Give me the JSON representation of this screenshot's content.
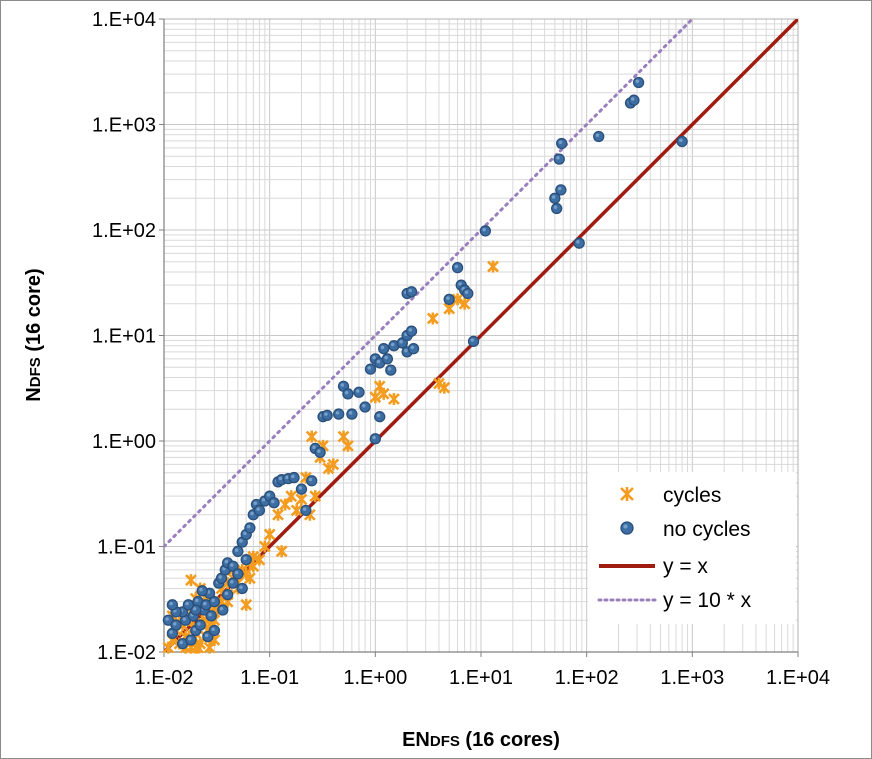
{
  "chart_data": {
    "type": "scatter",
    "x_scale": "log",
    "y_scale": "log",
    "xlim": [
      0.01,
      10000
    ],
    "ylim": [
      0.01,
      10000
    ],
    "x_tick_labels": [
      "1.E-02",
      "1.E-01",
      "1.E+00",
      "1.E+01",
      "1.E+02",
      "1.E+03",
      "1.E+04"
    ],
    "y_tick_labels": [
      "1.E-02",
      "1.E-01",
      "1.E+00",
      "1.E+01",
      "1.E+02",
      "1.E+03",
      "1.E+04"
    ],
    "xlabel": {
      "main": "EN",
      "small": "DFS",
      "rest": " (16 cores)"
    },
    "ylabel": {
      "main": "N",
      "small": "DFS",
      "rest": " (16 core)"
    },
    "grid": true,
    "legend_position": "bottom-right",
    "colors": {
      "cycles": "#f39c1f",
      "no_cycles": "#3d6ea3",
      "yx": "#a01b10",
      "y10x": "#9a7fbf",
      "grid": "#d9d9d9"
    },
    "series": [
      {
        "name": "cycles",
        "marker": "asterisk",
        "points": [
          [
            0.011,
            0.011
          ],
          [
            0.012,
            0.013
          ],
          [
            0.013,
            0.016
          ],
          [
            0.014,
            0.012
          ],
          [
            0.015,
            0.018
          ],
          [
            0.016,
            0.014
          ],
          [
            0.017,
            0.02
          ],
          [
            0.018,
            0.011
          ],
          [
            0.019,
            0.017
          ],
          [
            0.02,
            0.015
          ],
          [
            0.021,
            0.025
          ],
          [
            0.022,
            0.012
          ],
          [
            0.023,
            0.019
          ],
          [
            0.024,
            0.03
          ],
          [
            0.025,
            0.014
          ],
          [
            0.026,
            0.022
          ],
          [
            0.027,
            0.011
          ],
          [
            0.028,
            0.018
          ],
          [
            0.03,
            0.013
          ],
          [
            0.012,
            0.022
          ],
          [
            0.014,
            0.019
          ],
          [
            0.016,
            0.011
          ],
          [
            0.018,
            0.024
          ],
          [
            0.02,
            0.011
          ],
          [
            0.022,
            0.04
          ],
          [
            0.025,
            0.02
          ],
          [
            0.028,
            0.03
          ],
          [
            0.032,
            0.025
          ],
          [
            0.035,
            0.04
          ],
          [
            0.04,
            0.035
          ],
          [
            0.045,
            0.05
          ],
          [
            0.05,
            0.045
          ],
          [
            0.055,
            0.06
          ],
          [
            0.06,
            0.055
          ],
          [
            0.065,
            0.07
          ],
          [
            0.07,
            0.065
          ],
          [
            0.04,
            0.03
          ],
          [
            0.045,
            0.06
          ],
          [
            0.05,
            0.04
          ],
          [
            0.06,
            0.028
          ],
          [
            0.065,
            0.05
          ],
          [
            0.07,
            0.08
          ],
          [
            0.08,
            0.075
          ],
          [
            0.09,
            0.1
          ],
          [
            0.1,
            0.13
          ],
          [
            0.12,
            0.2
          ],
          [
            0.13,
            0.09
          ],
          [
            0.14,
            0.25
          ],
          [
            0.16,
            0.3
          ],
          [
            0.18,
            0.22
          ],
          [
            0.2,
            0.28
          ],
          [
            0.22,
            0.45
          ],
          [
            0.24,
            0.2
          ],
          [
            0.25,
            1.1
          ],
          [
            0.27,
            0.3
          ],
          [
            0.3,
            0.7
          ],
          [
            0.32,
            0.9
          ],
          [
            0.36,
            0.55
          ],
          [
            0.4,
            0.6
          ],
          [
            0.5,
            1.1
          ],
          [
            0.55,
            0.9
          ],
          [
            1.0,
            2.6
          ],
          [
            1.1,
            3.3
          ],
          [
            1.2,
            2.8
          ],
          [
            1.5,
            2.5
          ],
          [
            3.5,
            14.5
          ],
          [
            4.0,
            3.5
          ],
          [
            4.5,
            3.2
          ],
          [
            5.0,
            18
          ],
          [
            6.0,
            22
          ],
          [
            7.0,
            20
          ],
          [
            13.0,
            45
          ],
          [
            0.04,
            0.045
          ],
          [
            0.035,
            0.03
          ],
          [
            0.03,
            0.02
          ],
          [
            0.02,
            0.032
          ],
          [
            0.018,
            0.048
          ],
          [
            0.021,
            0.011
          ],
          [
            0.026,
            0.016
          ],
          [
            0.029,
            0.024
          ]
        ]
      },
      {
        "name": "no cycles",
        "marker": "circle",
        "points": [
          [
            0.011,
            0.02
          ],
          [
            0.012,
            0.015
          ],
          [
            0.013,
            0.018
          ],
          [
            0.015,
            0.012
          ],
          [
            0.016,
            0.02
          ],
          [
            0.018,
            0.013
          ],
          [
            0.019,
            0.022
          ],
          [
            0.02,
            0.016
          ],
          [
            0.021,
            0.03
          ],
          [
            0.022,
            0.018
          ],
          [
            0.024,
            0.025
          ],
          [
            0.026,
            0.014
          ],
          [
            0.028,
            0.022
          ],
          [
            0.03,
            0.016
          ],
          [
            0.025,
            0.028
          ],
          [
            0.027,
            0.036
          ],
          [
            0.03,
            0.03
          ],
          [
            0.033,
            0.045
          ],
          [
            0.035,
            0.05
          ],
          [
            0.038,
            0.06
          ],
          [
            0.04,
            0.07
          ],
          [
            0.045,
            0.065
          ],
          [
            0.05,
            0.09
          ],
          [
            0.055,
            0.11
          ],
          [
            0.06,
            0.13
          ],
          [
            0.065,
            0.15
          ],
          [
            0.07,
            0.2
          ],
          [
            0.075,
            0.25
          ],
          [
            0.08,
            0.22
          ],
          [
            0.09,
            0.27
          ],
          [
            0.1,
            0.3
          ],
          [
            0.11,
            0.26
          ],
          [
            0.12,
            0.41
          ],
          [
            0.13,
            0.43
          ],
          [
            0.15,
            0.44
          ],
          [
            0.17,
            0.45
          ],
          [
            0.2,
            0.35
          ],
          [
            0.22,
            0.22
          ],
          [
            0.25,
            0.42
          ],
          [
            0.27,
            0.85
          ],
          [
            0.3,
            0.78
          ],
          [
            0.32,
            1.7
          ],
          [
            0.35,
            1.75
          ],
          [
            0.45,
            1.8
          ],
          [
            0.5,
            3.3
          ],
          [
            0.55,
            2.8
          ],
          [
            0.6,
            1.8
          ],
          [
            0.7,
            2.9
          ],
          [
            0.8,
            2.1
          ],
          [
            1.0,
            1.05
          ],
          [
            1.1,
            1.7
          ],
          [
            0.9,
            4.8
          ],
          [
            1.0,
            6.0
          ],
          [
            1.1,
            5.5
          ],
          [
            1.2,
            7.5
          ],
          [
            1.3,
            6.0
          ],
          [
            1.4,
            4.7
          ],
          [
            1.5,
            8.0
          ],
          [
            1.8,
            8.5
          ],
          [
            2.0,
            10.0
          ],
          [
            2.2,
            11.0
          ],
          [
            2.0,
            7.0
          ],
          [
            2.3,
            7.5
          ],
          [
            2.0,
            25
          ],
          [
            2.2,
            26
          ],
          [
            5.0,
            22
          ],
          [
            6.0,
            44
          ],
          [
            6.5,
            30
          ],
          [
            7.0,
            27
          ],
          [
            7.5,
            25
          ],
          [
            8.5,
            8.8
          ],
          [
            11,
            98
          ],
          [
            50,
            200
          ],
          [
            52,
            160
          ],
          [
            55,
            470
          ],
          [
            58,
            660
          ],
          [
            57,
            240
          ],
          [
            85,
            75
          ],
          [
            130,
            770
          ],
          [
            260,
            1600
          ],
          [
            280,
            1700
          ],
          [
            310,
            2500
          ],
          [
            800,
            690
          ],
          [
            0.04,
            0.035
          ],
          [
            0.045,
            0.045
          ],
          [
            0.05,
            0.055
          ],
          [
            0.055,
            0.04
          ],
          [
            0.06,
            0.075
          ],
          [
            0.02,
            0.025
          ],
          [
            0.023,
            0.038
          ],
          [
            0.015,
            0.024
          ],
          [
            0.017,
            0.028
          ],
          [
            0.013,
            0.024
          ],
          [
            0.012,
            0.028
          ],
          [
            0.036,
            0.025
          ]
        ]
      },
      {
        "name": "y = x",
        "type": "line",
        "factor": 1
      },
      {
        "name": "y = 10 * x",
        "type": "line",
        "factor": 10,
        "style": "dotted"
      }
    ]
  }
}
